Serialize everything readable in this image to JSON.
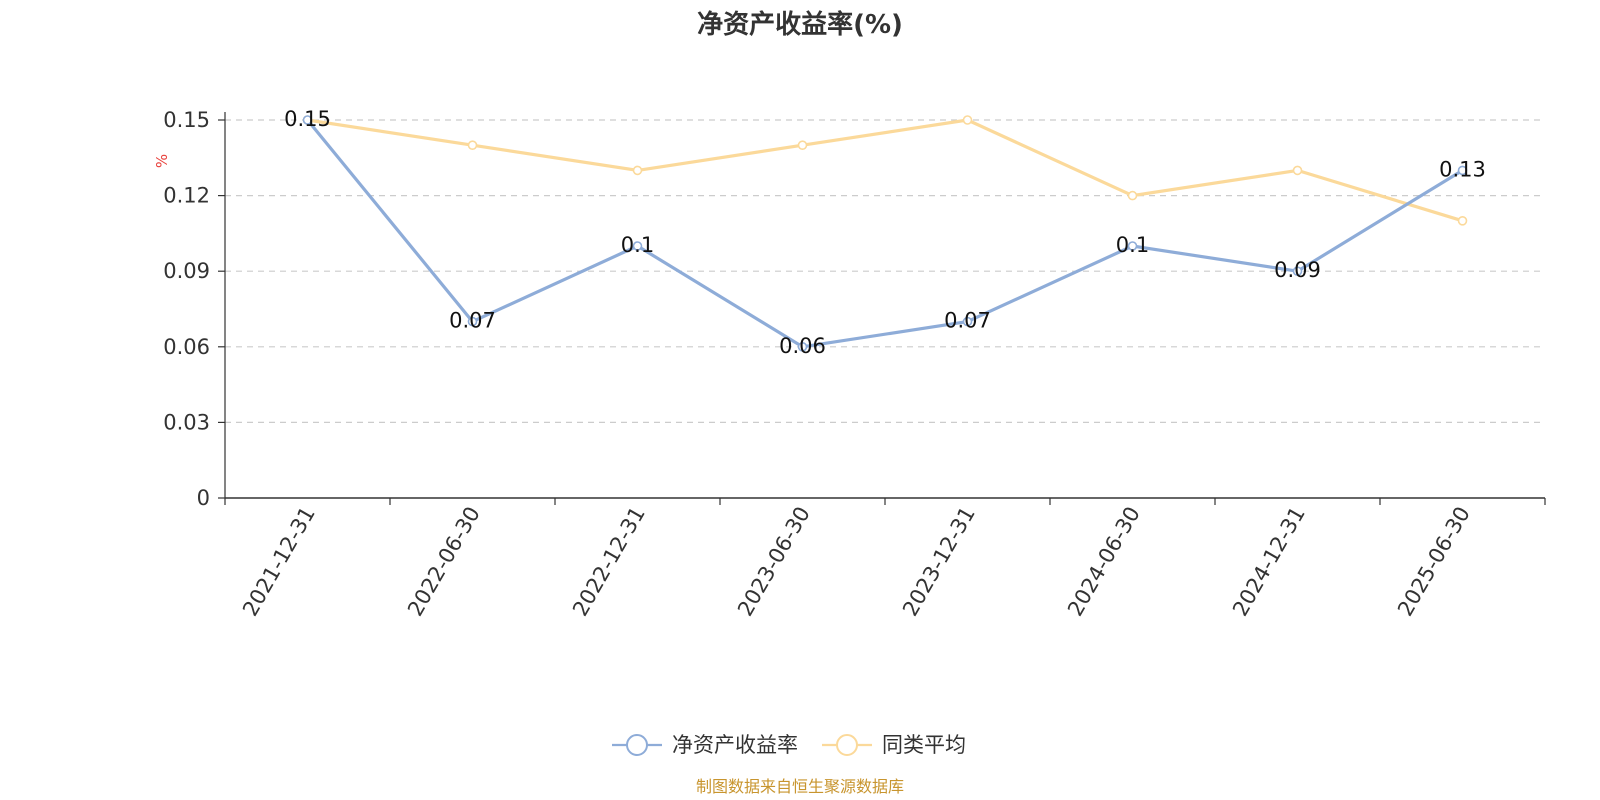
{
  "chart_data": {
    "type": "line",
    "title": "净资产收益率(%)",
    "ylabel": "%",
    "xlabel": "",
    "categories": [
      "2021-12-31",
      "2022-06-30",
      "2022-12-31",
      "2023-06-30",
      "2023-12-31",
      "2024-06-30",
      "2024-12-31",
      "2025-06-30"
    ],
    "ylim": [
      0,
      0.15
    ],
    "yticks": [
      "0",
      "0.03",
      "0.06",
      "0.09",
      "0.12",
      "0.15"
    ],
    "grid": true,
    "legend_position": "bottom",
    "series": [
      {
        "name": "净资产收益率",
        "values": [
          0.15,
          0.07,
          0.1,
          0.06,
          0.07,
          0.1,
          0.09,
          0.13
        ],
        "labels": [
          "0.15",
          "0.07",
          "0.1",
          "0.06",
          "0.07",
          "0.1",
          "0.09",
          "0.13"
        ],
        "color": "#8eacd8"
      },
      {
        "name": "同类平均",
        "values": [
          0.15,
          0.14,
          0.13,
          0.14,
          0.15,
          0.12,
          0.13,
          0.11
        ],
        "color": "#fbd99a"
      }
    ],
    "colors": {
      "axis": "#333333",
      "grid": "#cccccc",
      "unit": "#e8413c",
      "source": "#c8952e"
    }
  },
  "footer": {
    "source": "制图数据来自恒生聚源数据库"
  }
}
